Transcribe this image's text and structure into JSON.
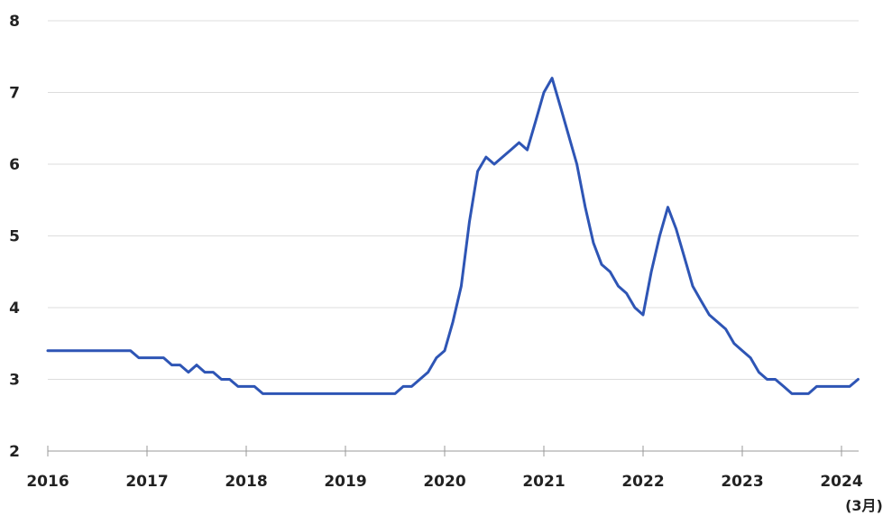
{
  "chart_data": {
    "type": "line",
    "title": "",
    "xlabel": "",
    "ylabel": "",
    "x_unit_label": "(3月)",
    "ylim": [
      2,
      8
    ],
    "xlim": [
      2016.0,
      2024.17
    ],
    "y_ticks": [
      "2",
      "3",
      "4",
      "5",
      "6",
      "7",
      "8"
    ],
    "x_ticks": [
      "2016",
      "2017",
      "2018",
      "2019",
      "2020",
      "2021",
      "2022",
      "2023",
      "2024"
    ],
    "grid": true,
    "line_color": "#2e55b5",
    "grid_color": "#dddddd",
    "series": [
      {
        "x": [
          2016.0,
          2016.083,
          2016.167,
          2016.25,
          2016.333,
          2016.417,
          2016.5,
          2016.583,
          2016.667,
          2016.75,
          2016.833,
          2016.917,
          2017.0,
          2017.083,
          2017.167,
          2017.25,
          2017.333,
          2017.417,
          2017.5,
          2017.583,
          2017.667,
          2017.75,
          2017.833,
          2017.917,
          2018.0,
          2018.083,
          2018.167,
          2018.25,
          2018.333,
          2018.417,
          2018.5,
          2018.583,
          2018.667,
          2018.75,
          2018.833,
          2018.917,
          2019.0,
          2019.083,
          2019.167,
          2019.25,
          2019.333,
          2019.417,
          2019.5,
          2019.583,
          2019.667,
          2019.75,
          2019.833,
          2019.917,
          2020.0,
          2020.083,
          2020.167,
          2020.25,
          2020.333,
          2020.417,
          2020.5,
          2020.583,
          2020.667,
          2020.75,
          2020.833,
          2020.917,
          2021.0,
          2021.083,
          2021.167,
          2021.25,
          2021.333,
          2021.417,
          2021.5,
          2021.583,
          2021.667,
          2021.75,
          2021.833,
          2021.917,
          2022.0,
          2022.083,
          2022.167,
          2022.25,
          2022.333,
          2022.417,
          2022.5,
          2022.583,
          2022.667,
          2022.75,
          2022.833,
          2022.917,
          2023.0,
          2023.083,
          2023.167,
          2023.25,
          2023.333,
          2023.417,
          2023.5,
          2023.583,
          2023.667,
          2023.75,
          2023.833,
          2023.917,
          2024.0,
          2024.083,
          2024.167
        ],
        "values": [
          3.4,
          3.4,
          3.4,
          3.4,
          3.4,
          3.4,
          3.4,
          3.4,
          3.4,
          3.4,
          3.4,
          3.3,
          3.3,
          3.3,
          3.3,
          3.2,
          3.2,
          3.1,
          3.2,
          3.1,
          3.1,
          3.0,
          3.0,
          2.9,
          2.9,
          2.9,
          2.8,
          2.8,
          2.8,
          2.8,
          2.8,
          2.8,
          2.8,
          2.8,
          2.8,
          2.8,
          2.8,
          2.8,
          2.8,
          2.8,
          2.8,
          2.8,
          2.8,
          2.9,
          2.9,
          3.0,
          3.1,
          3.3,
          3.4,
          3.8,
          4.3,
          5.2,
          5.9,
          6.1,
          6.0,
          6.1,
          6.2,
          6.3,
          6.2,
          6.6,
          7.0,
          7.2,
          6.8,
          6.4,
          6.0,
          5.4,
          4.9,
          4.6,
          4.5,
          4.3,
          4.2,
          4.0,
          3.9,
          4.5,
          5.0,
          5.4,
          5.1,
          4.7,
          4.3,
          4.1,
          3.9,
          3.8,
          3.7,
          3.5,
          3.4,
          3.3,
          3.1,
          3.0,
          3.0,
          2.9,
          2.8,
          2.8,
          2.8,
          2.9,
          2.9,
          2.9,
          2.9,
          2.9,
          3.0
        ]
      }
    ]
  }
}
